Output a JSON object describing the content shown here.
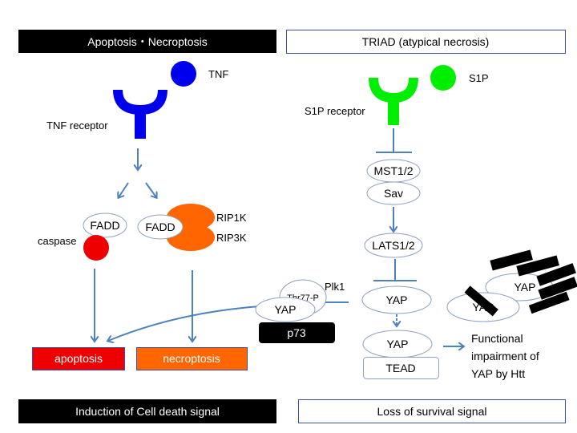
{
  "headers": {
    "left": "Apoptosis・Necroptosis",
    "right": "TRIAD (atypical necrosis)"
  },
  "left": {
    "ligand": "TNF",
    "receptor": "TNF receptor",
    "fadd1": "FADD",
    "fadd2": "FADD",
    "caspase": "caspase",
    "rip1k": "RIP1K",
    "rip3k": "RIP3K",
    "apoptosis": "apoptosis",
    "necroptosis": "necroptosis"
  },
  "middle": {
    "phospho": "Thr77-P",
    "kinase": "Plk1",
    "yap": "YAP",
    "p73": "p73"
  },
  "right": {
    "ligand": "S1P",
    "receptor": "S1P receptor",
    "mst": "MST1/2",
    "sav": "Sav",
    "lats": "LATS1/2",
    "yap1": "YAP",
    "yap2": "YAP",
    "tead": "TEAD",
    "agg_yap1": "YAP",
    "agg_yap2": "YAP",
    "outcome": [
      "Functional",
      "impairment of",
      "YAP by Htt"
    ]
  },
  "footers": {
    "left": "Induction of Cell death signal",
    "right": "Loss of survival signal"
  },
  "colors": {
    "tnf": "#0000ee",
    "s1p": "#00ee00",
    "arrow": "#4f81bd",
    "caspase": "#ee0000",
    "rip": "#ff6600",
    "apoptosis": "#ee0000",
    "necroptosis": "#ff6600"
  }
}
